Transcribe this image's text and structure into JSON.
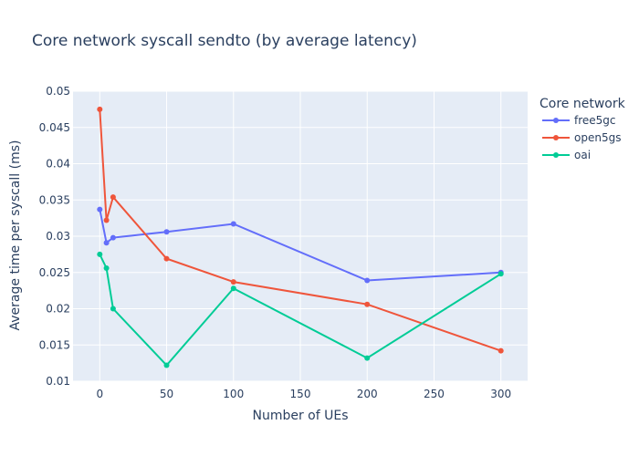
{
  "chart_data": {
    "type": "line",
    "title": "Core network syscall sendto (by average latency)",
    "xlabel": "Number of UEs",
    "ylabel": "Average time per syscall (ms)",
    "xlim": [
      -20,
      320
    ],
    "ylim": [
      0.01,
      0.05
    ],
    "xticks": [
      0,
      50,
      100,
      150,
      200,
      250,
      300
    ],
    "yticks": [
      0.01,
      0.015,
      0.02,
      0.025,
      0.03,
      0.035,
      0.04,
      0.045,
      0.05
    ],
    "ytick_labels": [
      "0.01",
      "0.015",
      "0.02",
      "0.025",
      "0.03",
      "0.035",
      "0.04",
      "0.045",
      "0.05"
    ],
    "grid": true,
    "legend": {
      "title": "Core network",
      "placement": "top-right (outside plot)"
    },
    "plot_background": "#e5ecf6",
    "series": [
      {
        "name": "free5gc",
        "color": "#636efa",
        "x": [
          0,
          5,
          10,
          50,
          100,
          200,
          300
        ],
        "y": [
          0.0337,
          0.0291,
          0.0298,
          0.0306,
          0.0317,
          0.0239,
          0.025
        ]
      },
      {
        "name": "open5gs",
        "color": "#ef553b",
        "x": [
          0,
          5,
          10,
          50,
          100,
          200,
          300
        ],
        "y": [
          0.0475,
          0.0322,
          0.0354,
          0.0269,
          0.0237,
          0.0206,
          0.0142
        ]
      },
      {
        "name": "oai",
        "color": "#00cc96",
        "x": [
          0,
          5,
          10,
          50,
          100,
          200,
          300
        ],
        "y": [
          0.0275,
          0.0256,
          0.02,
          0.0122,
          0.0228,
          0.0132,
          0.0248
        ]
      }
    ]
  }
}
